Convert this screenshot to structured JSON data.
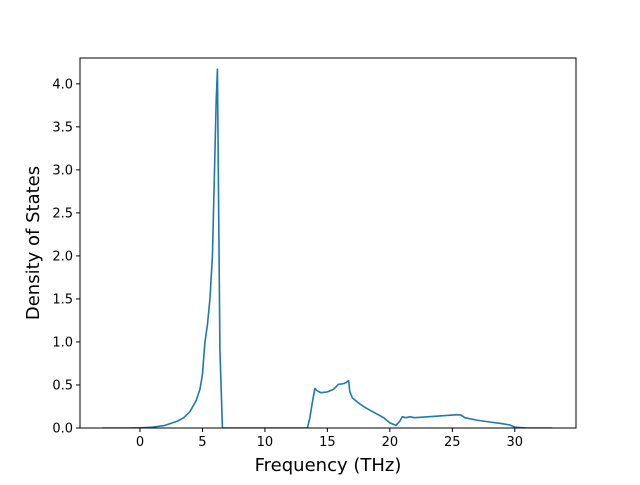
{
  "chart_data": {
    "type": "line",
    "title": "",
    "xlabel": "Frequency (THz)",
    "ylabel": "Density of States",
    "xlim": [
      -4.8,
      34.9
    ],
    "ylim": [
      0,
      4.3
    ],
    "x_ticks": [
      0,
      5,
      10,
      15,
      20,
      25,
      30
    ],
    "x_tick_labels": [
      "0",
      "5",
      "10",
      "15",
      "20",
      "25",
      "30"
    ],
    "y_ticks": [
      0.0,
      0.5,
      1.0,
      1.5,
      2.0,
      2.5,
      3.0,
      3.5,
      4.0
    ],
    "y_tick_labels": [
      "0.0",
      "0.5",
      "1.0",
      "1.5",
      "2.0",
      "2.5",
      "3.0",
      "3.5",
      "4.0"
    ],
    "grid": false,
    "legend": "none",
    "series": [
      {
        "color": "#1f77b4",
        "x": [
          -3.0,
          -1.0,
          0.0,
          1.0,
          2.0,
          3.0,
          3.5,
          4.0,
          4.5,
          4.8,
          5.0,
          5.2,
          5.4,
          5.6,
          5.8,
          5.9,
          6.0,
          6.1,
          6.2,
          6.3,
          6.4,
          6.6,
          7.0,
          10.0,
          13.4,
          13.6,
          13.8,
          14.0,
          14.2,
          14.5,
          15.0,
          15.5,
          15.9,
          16.1,
          16.4,
          16.7,
          16.8,
          17.0,
          17.5,
          18.0,
          18.5,
          19.0,
          19.5,
          20.0,
          20.5,
          20.8,
          21.0,
          21.3,
          21.6,
          22.0,
          23.0,
          24.0,
          25.0,
          25.4,
          25.7,
          26.0,
          27.0,
          28.0,
          29.0,
          29.6,
          30.0,
          31.0,
          33.0
        ],
        "y": [
          0.0,
          0.0,
          0.002,
          0.01,
          0.03,
          0.08,
          0.12,
          0.19,
          0.32,
          0.45,
          0.62,
          1.0,
          1.2,
          1.5,
          2.0,
          2.6,
          3.2,
          3.8,
          4.17,
          2.5,
          0.9,
          0.0,
          0.0,
          0.0,
          0.0,
          0.12,
          0.3,
          0.46,
          0.43,
          0.41,
          0.42,
          0.45,
          0.51,
          0.51,
          0.52,
          0.55,
          0.42,
          0.35,
          0.29,
          0.24,
          0.2,
          0.16,
          0.12,
          0.06,
          0.03,
          0.08,
          0.13,
          0.12,
          0.13,
          0.12,
          0.13,
          0.14,
          0.15,
          0.155,
          0.15,
          0.12,
          0.09,
          0.07,
          0.05,
          0.035,
          0.01,
          0.0,
          0.0
        ]
      }
    ]
  }
}
